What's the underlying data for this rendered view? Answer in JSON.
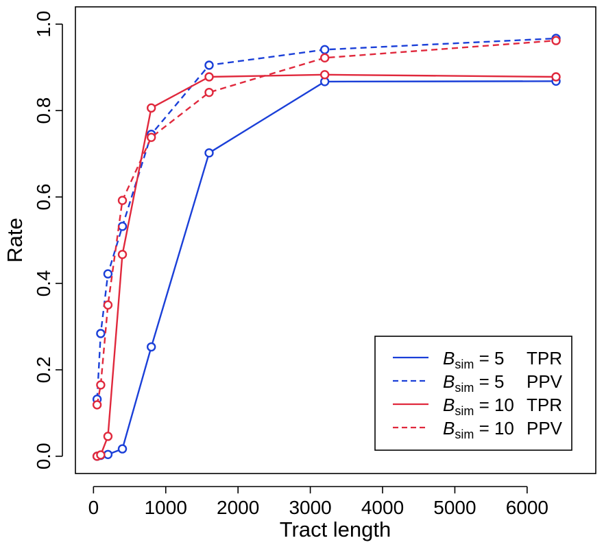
{
  "chart_data": {
    "type": "line",
    "xlabel": "Tract length",
    "ylabel": "Rate",
    "xlim": [
      -250,
      6950
    ],
    "ylim": [
      -0.04,
      1.04
    ],
    "x_ticks": [
      0,
      1000,
      2000,
      3000,
      4000,
      5000,
      6000
    ],
    "y_ticks": [
      0.0,
      0.2,
      0.4,
      0.6,
      0.8,
      1.0
    ],
    "x_tick_labels": [
      "0",
      "1000",
      "2000",
      "3000",
      "4000",
      "5000",
      "6000"
    ],
    "y_tick_labels": [
      "0.0",
      "0.2",
      "0.4",
      "0.6",
      "0.8",
      "1.0"
    ],
    "legend_position": "bottom-right",
    "grid": false,
    "series": [
      {
        "name": "B_sim = 5 TPR",
        "legend_main": "B",
        "legend_sub": "sim",
        "legend_value": "= 5",
        "legend_metric": "TPR",
        "color": "#1a3fd8",
        "dash": "solid",
        "x": [
          50,
          100,
          200,
          400,
          800,
          1600,
          3200,
          6400
        ],
        "y": [
          0.0,
          0.002,
          0.004,
          0.017,
          0.253,
          0.702,
          0.867,
          0.868
        ]
      },
      {
        "name": "B_sim = 5 PPV",
        "legend_main": "B",
        "legend_sub": "sim",
        "legend_value": "= 5",
        "legend_metric": "PPV",
        "color": "#1a3fd8",
        "dash": "dashed",
        "x": [
          50,
          100,
          200,
          400,
          800,
          1600,
          3200,
          6400
        ],
        "y": [
          0.132,
          0.284,
          0.422,
          0.532,
          0.745,
          0.905,
          0.941,
          0.967
        ]
      },
      {
        "name": "B_sim = 10 TPR",
        "legend_main": "B",
        "legend_sub": "sim",
        "legend_value": "= 10",
        "legend_metric": "TPR",
        "color": "#e0283c",
        "dash": "solid",
        "x": [
          50,
          100,
          200,
          400,
          800,
          1600,
          3200,
          6400
        ],
        "y": [
          0.0,
          0.003,
          0.046,
          0.467,
          0.806,
          0.878,
          0.883,
          0.878
        ]
      },
      {
        "name": "B_sim = 10 PPV",
        "legend_main": "B",
        "legend_sub": "sim",
        "legend_value": "= 10",
        "legend_metric": "PPV",
        "color": "#e0283c",
        "dash": "dashed",
        "x": [
          50,
          100,
          200,
          400,
          800,
          1600,
          3200,
          6400
        ],
        "y": [
          0.119,
          0.165,
          0.35,
          0.592,
          0.738,
          0.842,
          0.922,
          0.962
        ]
      }
    ]
  }
}
